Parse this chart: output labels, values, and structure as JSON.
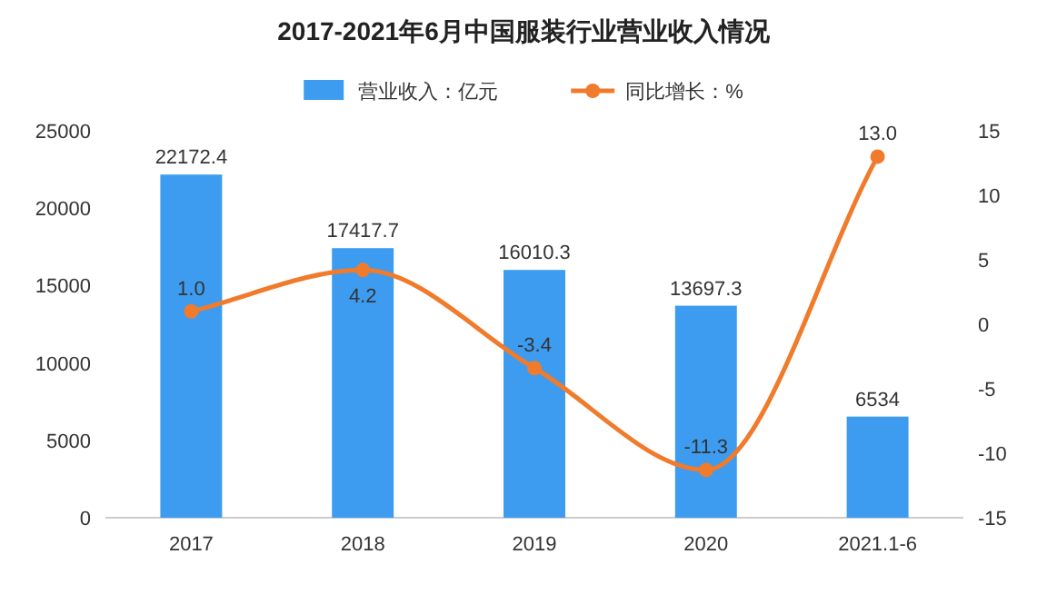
{
  "chart_data": {
    "type": "bar",
    "title": "2017-2021年6月中国服装行业营业收入情况",
    "categories": [
      "2017",
      "2018",
      "2019",
      "2020",
      "2021.1-6"
    ],
    "series": [
      {
        "name": "营业收入：亿元",
        "color": "#3d9cf0",
        "values": [
          22172.4,
          17417.7,
          16010.3,
          13697.3,
          6534
        ]
      },
      {
        "name": "同比增长：%",
        "type": "line",
        "axis": "y2",
        "color": "#f07b2c",
        "values": [
          1.0,
          4.2,
          -3.4,
          -11.3,
          13.0
        ],
        "value_labels": [
          "1.0",
          "4.2",
          "-3.4",
          "-11.3",
          "13.0"
        ]
      }
    ],
    "ylim": [
      0,
      25000
    ],
    "yticks": [
      0,
      5000,
      10000,
      15000,
      20000,
      25000
    ],
    "y2lim": [
      -15,
      15
    ],
    "y2ticks": [
      -15,
      -10,
      -5,
      0,
      5,
      10,
      15
    ],
    "data_labels": true,
    "legend": "top",
    "grid": false,
    "marker": "circle",
    "line_style": "solid"
  }
}
